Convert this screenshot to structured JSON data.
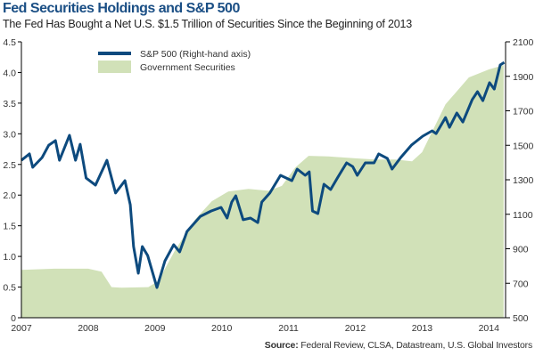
{
  "chart_data": {
    "type": "line",
    "title": "Fed Securities Holdings and S&P 500",
    "subtitle": "The Fed Has Bought a Net U.S. $1.5 Trillion of Securities Since the Beginning of 2013",
    "source_label": "Source:",
    "source_text": "Federal Review, CLSA, Datastream, U.S. Global Investors",
    "xlim": [
      2007,
      2014.25
    ],
    "x_ticks": [
      "2007",
      "2008",
      "2009",
      "2010",
      "2011",
      "2012",
      "2013",
      "2014"
    ],
    "y_left": {
      "lim": [
        0,
        4.5
      ],
      "ticks": [
        "0",
        "0.5",
        "1.0",
        "1.5",
        "2.0",
        "2.5",
        "3.0",
        "3.5",
        "4.0",
        "4.5"
      ]
    },
    "y_right": {
      "lim": [
        500,
        2100
      ],
      "ticks": [
        "500",
        "700",
        "900",
        "1100",
        "1300",
        "1500",
        "1700",
        "1900",
        "2100"
      ]
    },
    "grid": false,
    "legend_placement": "top-left",
    "series": [
      {
        "name": "S&P 500 (Right-hand axis)",
        "kind": "line",
        "axis": "right",
        "color": "#0d4a7e",
        "x": [
          2007.0,
          2007.12,
          2007.17,
          2007.31,
          2007.41,
          2007.51,
          2007.57,
          2007.72,
          2007.81,
          2007.88,
          2007.97,
          2008.11,
          2008.28,
          2008.41,
          2008.55,
          2008.63,
          2008.68,
          2008.75,
          2008.81,
          2008.89,
          2009.03,
          2009.15,
          2009.28,
          2009.37,
          2009.48,
          2009.68,
          2009.84,
          2009.99,
          2010.08,
          2010.15,
          2010.21,
          2010.32,
          2010.43,
          2010.54,
          2010.6,
          2010.72,
          2010.88,
          2011.05,
          2011.13,
          2011.25,
          2011.31,
          2011.36,
          2011.44,
          2011.53,
          2011.63,
          2011.73,
          2011.87,
          2011.96,
          2012.03,
          2012.15,
          2012.28,
          2012.35,
          2012.48,
          2012.55,
          2012.68,
          2012.84,
          2013.01,
          2013.15,
          2013.21,
          2013.35,
          2013.41,
          2013.52,
          2013.61,
          2013.75,
          2013.83,
          2013.91,
          2014.01,
          2014.08,
          2014.17,
          2014.23
        ],
        "values": [
          1413,
          1450,
          1372,
          1429,
          1501,
          1527,
          1413,
          1558,
          1413,
          1506,
          1310,
          1269,
          1413,
          1223,
          1295,
          1155,
          913,
          758,
          913,
          861,
          675,
          830,
          923,
          882,
          1000,
          1088,
          1119,
          1140,
          1078,
          1171,
          1207,
          1068,
          1078,
          1052,
          1171,
          1223,
          1326,
          1295,
          1362,
          1326,
          1346,
          1119,
          1104,
          1274,
          1243,
          1310,
          1398,
          1377,
          1326,
          1398,
          1398,
          1450,
          1424,
          1362,
          1429,
          1501,
          1553,
          1584,
          1568,
          1661,
          1604,
          1687,
          1635,
          1765,
          1811,
          1759,
          1863,
          1826,
          1966,
          1981
        ]
      },
      {
        "name": "Government Securities",
        "kind": "area",
        "axis": "left",
        "color": "#d1e1b8",
        "x": [
          2007.0,
          2007.5,
          2008.0,
          2008.2,
          2008.35,
          2008.5,
          2008.9,
          2009.05,
          2009.3,
          2009.6,
          2009.85,
          2010.1,
          2010.4,
          2010.7,
          2010.9,
          2011.1,
          2011.3,
          2011.6,
          2012.0,
          2012.3,
          2012.6,
          2012.85,
          2013.0,
          2013.35,
          2013.7,
          2014.0,
          2014.22
        ],
        "values": [
          0.78,
          0.8,
          0.8,
          0.75,
          0.5,
          0.49,
          0.5,
          0.6,
          1.1,
          1.6,
          1.9,
          2.06,
          2.1,
          2.07,
          2.15,
          2.45,
          2.64,
          2.63,
          2.6,
          2.58,
          2.58,
          2.55,
          2.7,
          3.48,
          3.92,
          4.05,
          4.12
        ]
      }
    ]
  }
}
